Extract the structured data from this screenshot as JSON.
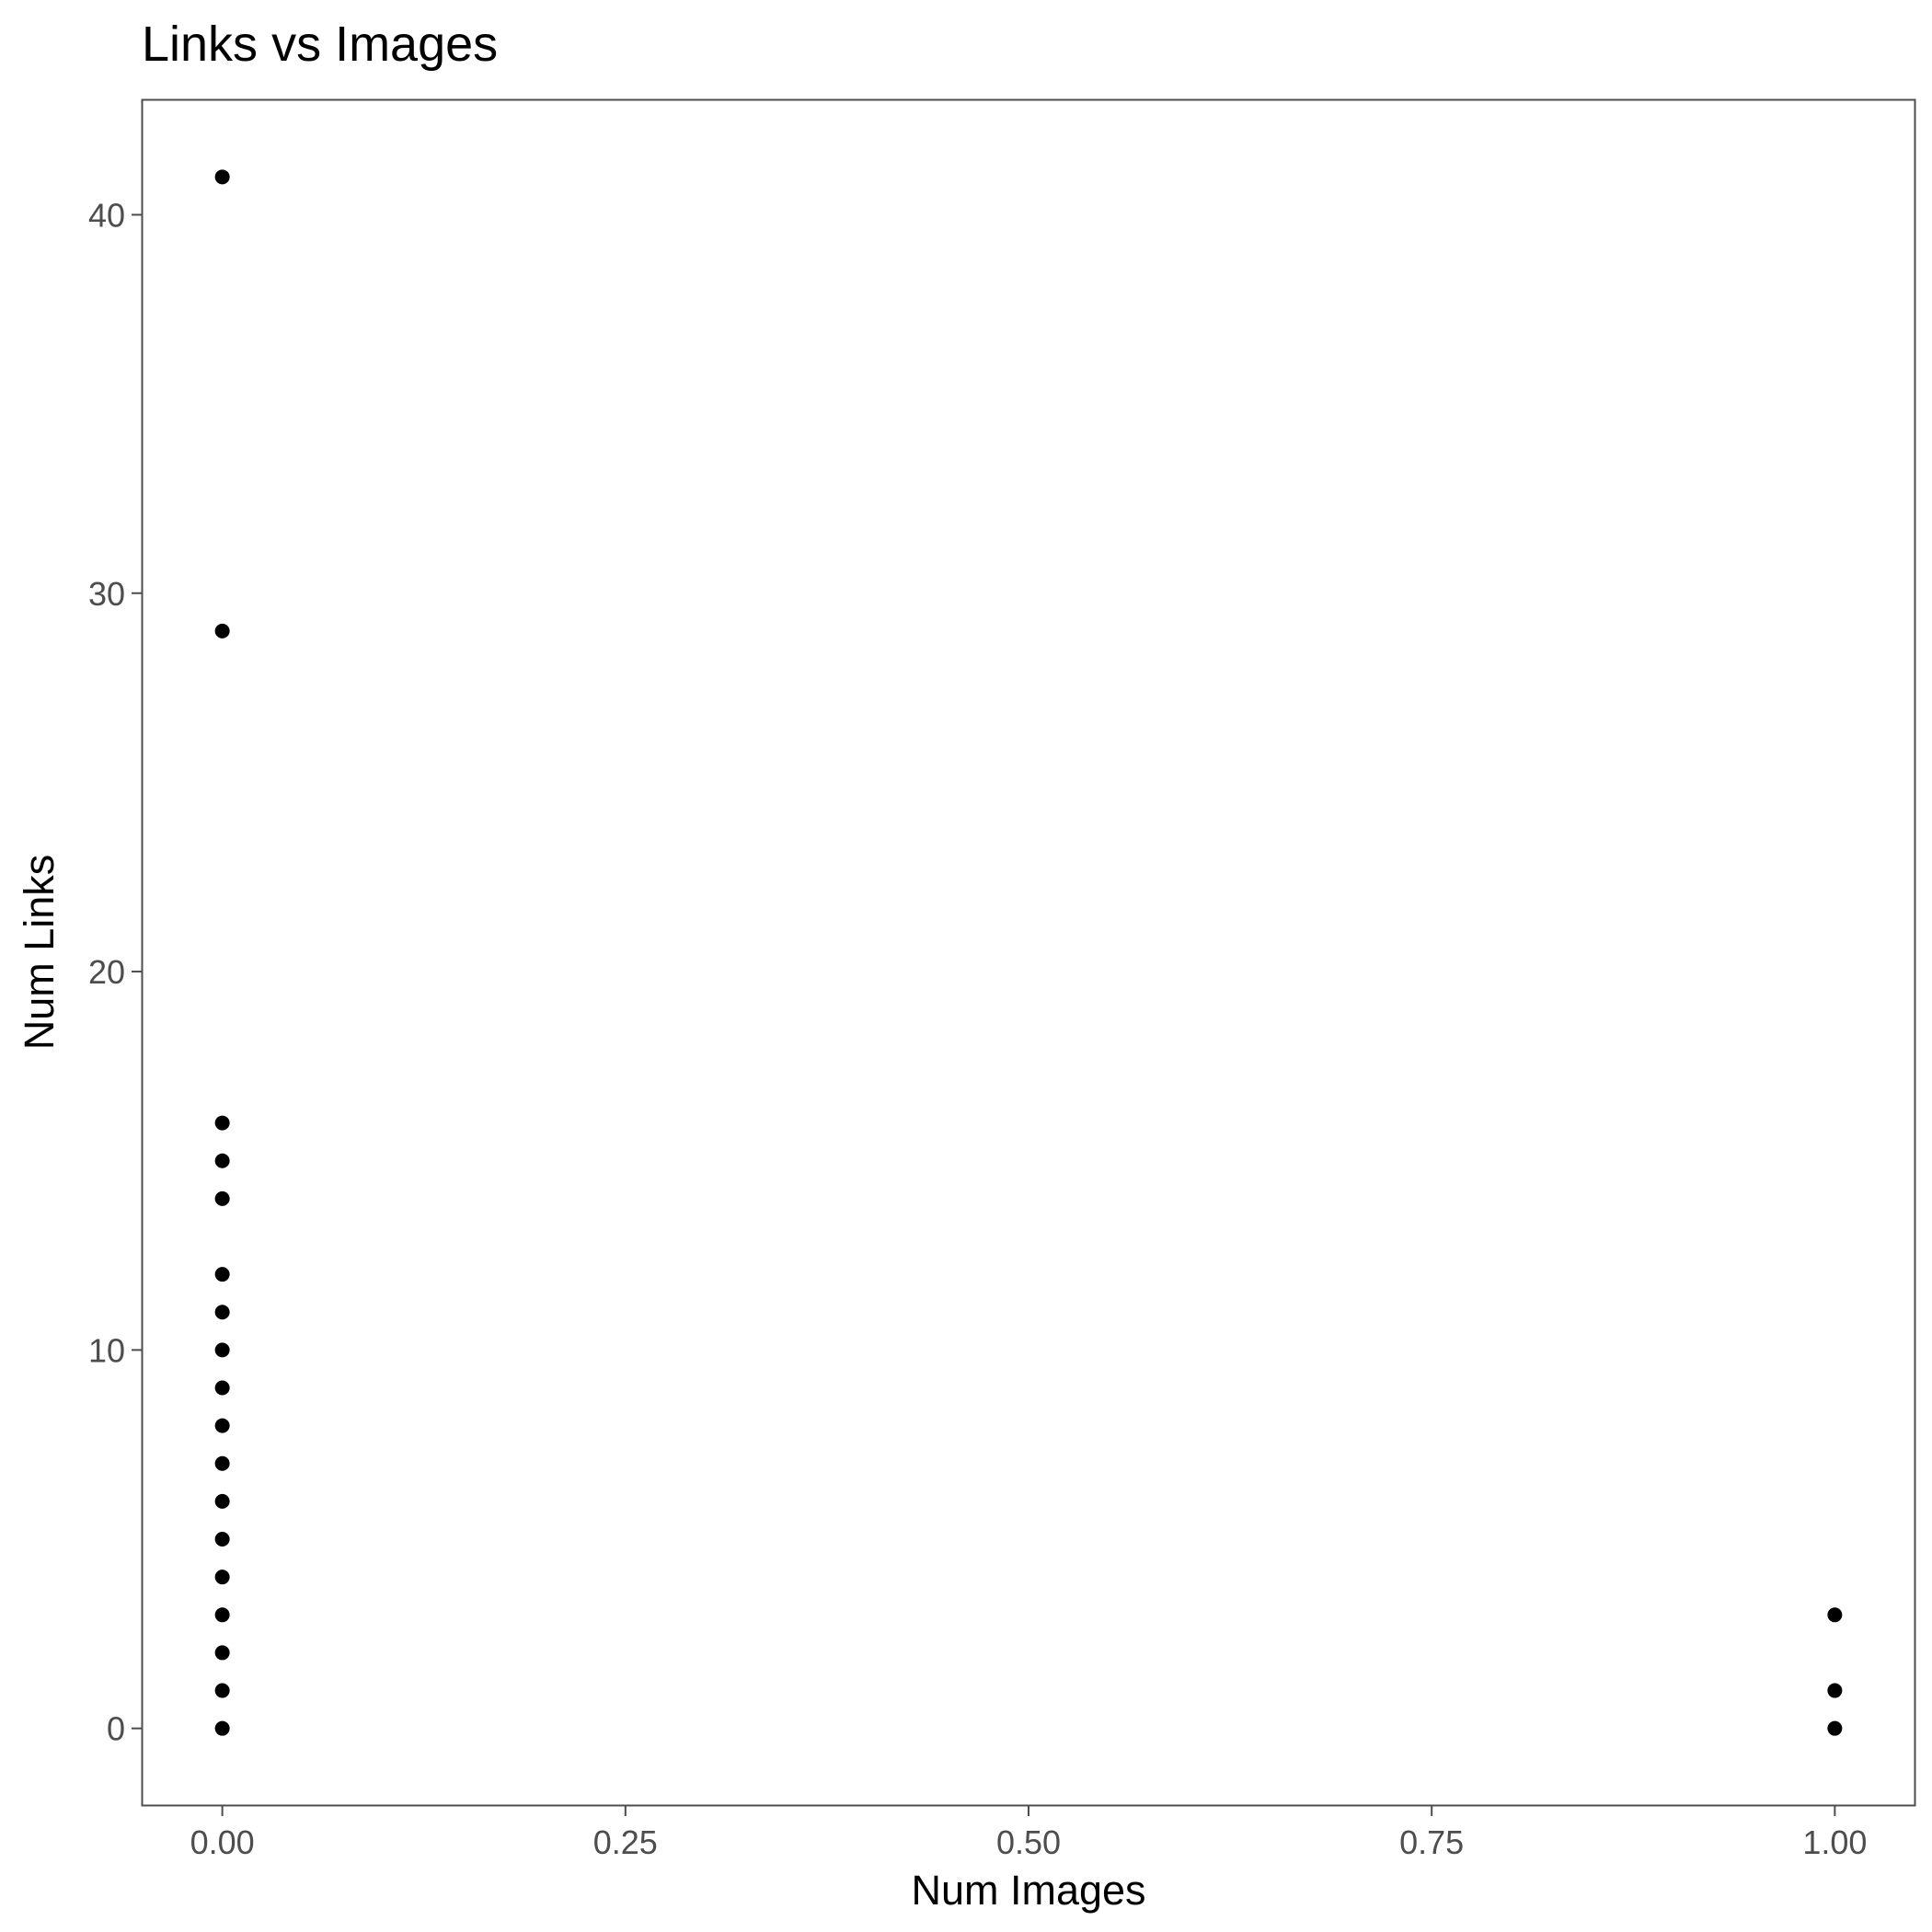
{
  "chart_data": {
    "type": "scatter",
    "title": "Links vs Images",
    "xlabel": "Num Images",
    "ylabel": "Num Links",
    "xlim": [
      -0.05,
      1.05
    ],
    "ylim": [
      -2.05,
      43.05
    ],
    "x_ticks": [
      0.0,
      0.25,
      0.5,
      0.75,
      1.0
    ],
    "x_tick_labels": [
      "0.00",
      "0.25",
      "0.50",
      "0.75",
      "1.00"
    ],
    "y_ticks": [
      0,
      10,
      20,
      30,
      40
    ],
    "y_tick_labels": [
      "0",
      "10",
      "20",
      "30",
      "40"
    ],
    "grid": false,
    "legend": "none",
    "point_color": "#000000",
    "points": [
      {
        "x": 0,
        "y": 41
      },
      {
        "x": 0,
        "y": 29
      },
      {
        "x": 0,
        "y": 16
      },
      {
        "x": 0,
        "y": 15
      },
      {
        "x": 0,
        "y": 14
      },
      {
        "x": 0,
        "y": 12
      },
      {
        "x": 0,
        "y": 11
      },
      {
        "x": 0,
        "y": 10
      },
      {
        "x": 0,
        "y": 9
      },
      {
        "x": 0,
        "y": 8
      },
      {
        "x": 0,
        "y": 7
      },
      {
        "x": 0,
        "y": 6
      },
      {
        "x": 0,
        "y": 5
      },
      {
        "x": 0,
        "y": 4
      },
      {
        "x": 0,
        "y": 3
      },
      {
        "x": 0,
        "y": 2
      },
      {
        "x": 0,
        "y": 1
      },
      {
        "x": 0,
        "y": 0
      },
      {
        "x": 1,
        "y": 3
      },
      {
        "x": 1,
        "y": 1
      },
      {
        "x": 1,
        "y": 0
      }
    ]
  }
}
